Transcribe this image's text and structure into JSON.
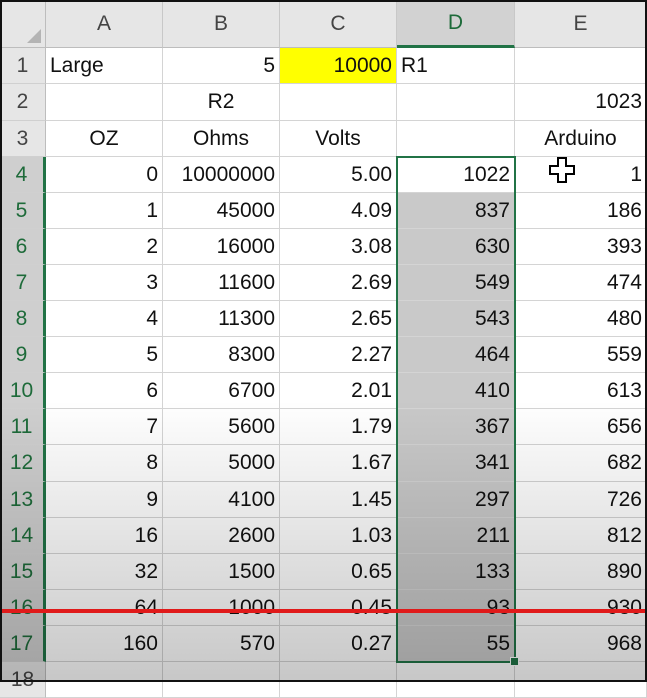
{
  "columns": [
    "A",
    "B",
    "C",
    "D",
    "E"
  ],
  "rows": [
    "1",
    "2",
    "3",
    "4",
    "5",
    "6",
    "7",
    "8",
    "9",
    "10",
    "11",
    "12",
    "13",
    "14",
    "15",
    "16",
    "17",
    "18"
  ],
  "cells": {
    "r1": {
      "a": "Large",
      "b": "5",
      "c": "10000",
      "d": "R1",
      "e": ""
    },
    "r2": {
      "a": "",
      "b": "R2",
      "c": "",
      "d": "",
      "e": "1023"
    },
    "r3": {
      "a": "OZ",
      "b": "Ohms",
      "c": "Volts",
      "d": "",
      "e": "Arduino"
    },
    "r4": {
      "a": "0",
      "b": "10000000",
      "c": "5.00",
      "d": "1022",
      "e": "1"
    },
    "r5": {
      "a": "1",
      "b": "45000",
      "c": "4.09",
      "d": "837",
      "e": "186"
    },
    "r6": {
      "a": "2",
      "b": "16000",
      "c": "3.08",
      "d": "630",
      "e": "393"
    },
    "r7": {
      "a": "3",
      "b": "11600",
      "c": "2.69",
      "d": "549",
      "e": "474"
    },
    "r8": {
      "a": "4",
      "b": "11300",
      "c": "2.65",
      "d": "543",
      "e": "480"
    },
    "r9": {
      "a": "5",
      "b": "8300",
      "c": "2.27",
      "d": "464",
      "e": "559"
    },
    "r10": {
      "a": "6",
      "b": "6700",
      "c": "2.01",
      "d": "410",
      "e": "613"
    },
    "r11": {
      "a": "7",
      "b": "5600",
      "c": "1.79",
      "d": "367",
      "e": "656"
    },
    "r12": {
      "a": "8",
      "b": "5000",
      "c": "1.67",
      "d": "341",
      "e": "682"
    },
    "r13": {
      "a": "9",
      "b": "4100",
      "c": "1.45",
      "d": "297",
      "e": "726"
    },
    "r14": {
      "a": "16",
      "b": "2600",
      "c": "1.03",
      "d": "211",
      "e": "812"
    },
    "r15": {
      "a": "32",
      "b": "1500",
      "c": "0.65",
      "d": "133",
      "e": "890"
    },
    "r16": {
      "a": "64",
      "b": "1000",
      "c": "0.45",
      "d": "93",
      "e": "930"
    },
    "r17": {
      "a": "160",
      "b": "570",
      "c": "0.27",
      "d": "55",
      "e": "968"
    }
  },
  "selection": {
    "column": "D",
    "range": "D4:D17"
  },
  "colors": {
    "highlight": "#ffff00",
    "selection_border": "#217346",
    "annotation_line": "#e01a1a"
  },
  "cursor_icon": "move-cross-cursor-icon"
}
